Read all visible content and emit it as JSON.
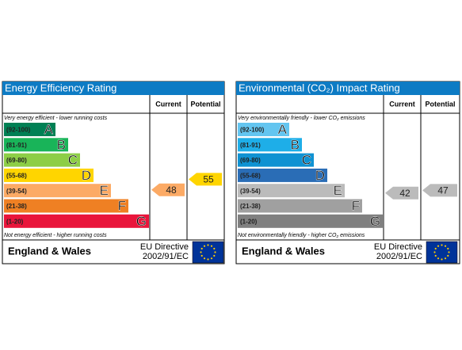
{
  "panels": [
    {
      "title": "Energy Efficiency Rating",
      "current_label": "Current",
      "potential_label": "Potential",
      "top_note": "Very energy efficient - lower running costs",
      "bottom_note": "Not energy efficient - higher running costs",
      "bands": [
        {
          "range": "(92-100)",
          "letter": "A",
          "color": "#008054"
        },
        {
          "range": "(81-91)",
          "letter": "B",
          "color": "#19b459"
        },
        {
          "range": "(69-80)",
          "letter": "C",
          "color": "#8dce46"
        },
        {
          "range": "(55-68)",
          "letter": "D",
          "color": "#ffd500"
        },
        {
          "range": "(39-54)",
          "letter": "E",
          "color": "#fcaa65"
        },
        {
          "range": "(21-38)",
          "letter": "F",
          "color": "#ef8023"
        },
        {
          "range": "(1-20)",
          "letter": "G",
          "color": "#e9153b"
        }
      ],
      "current": 48,
      "potential": 55,
      "country": "England & Wales",
      "directive": [
        "EU Directive",
        "2002/91/EC"
      ]
    },
    {
      "title": "Environmental (CO₂) Impact Rating",
      "current_label": "Current",
      "potential_label": "Potential",
      "top_note": "Very environmentally friendly - lower CO₂ emissions",
      "bottom_note": "Not environmentally friendly - higher CO₂ emissions",
      "bands": [
        {
          "range": "(92-100)",
          "letter": "A",
          "color": "#63c5f0"
        },
        {
          "range": "(81-91)",
          "letter": "B",
          "color": "#1eaee8"
        },
        {
          "range": "(69-80)",
          "letter": "C",
          "color": "#0f92d2"
        },
        {
          "range": "(55-68)",
          "letter": "D",
          "color": "#2a6db6"
        },
        {
          "range": "(39-54)",
          "letter": "E",
          "color": "#bbbbbb"
        },
        {
          "range": "(21-38)",
          "letter": "F",
          "color": "#a0a0a0"
        },
        {
          "range": "(1-20)",
          "letter": "G",
          "color": "#808080"
        }
      ],
      "current": 42,
      "potential": 47,
      "country": "England & Wales",
      "directive": [
        "EU Directive",
        "2002/91/EC"
      ]
    }
  ]
}
